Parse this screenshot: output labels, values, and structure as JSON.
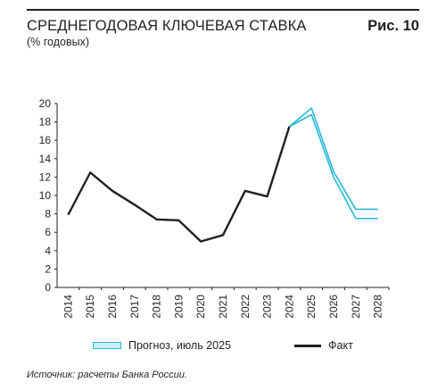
{
  "header": {
    "title": "СРЕДНЕГОДОВАЯ КЛЮЧЕВАЯ СТАВКА",
    "figure_label": "Рис. 10",
    "subtitle": "(% годовых)"
  },
  "legend": {
    "forecast_label": "Прогноз, июль 2025",
    "fact_label": "Факт"
  },
  "source": "Источник: расчеты Банка России.",
  "colors": {
    "fact": "#231f20",
    "forecast_line": "#27b8d8",
    "forecast_fill": "#c9f0f9"
  },
  "chart_data": {
    "type": "line",
    "categories": [
      "2014",
      "2015",
      "2016",
      "2017",
      "2018",
      "2019",
      "2020",
      "2021",
      "2022",
      "2023",
      "2024",
      "2025",
      "2026",
      "2027",
      "2028"
    ],
    "y_ticks": [
      0,
      2,
      4,
      6,
      8,
      10,
      12,
      14,
      16,
      18,
      20
    ],
    "ylim": [
      0,
      20
    ],
    "grid": false,
    "legend_position": "bottom",
    "series": [
      {
        "name": "Факт",
        "values": [
          7.9,
          12.5,
          10.5,
          9.0,
          7.4,
          7.3,
          5.0,
          5.7,
          10.5,
          9.9,
          17.5,
          null,
          null,
          null,
          null
        ]
      },
      {
        "name": "Прогноз, июль 2025",
        "upper": [
          null,
          null,
          null,
          null,
          null,
          null,
          null,
          null,
          null,
          null,
          17.5,
          19.5,
          12.6,
          8.5,
          8.5
        ],
        "lower": [
          null,
          null,
          null,
          null,
          null,
          null,
          null,
          null,
          null,
          null,
          17.5,
          18.8,
          12.0,
          7.5,
          7.5
        ]
      }
    ]
  }
}
